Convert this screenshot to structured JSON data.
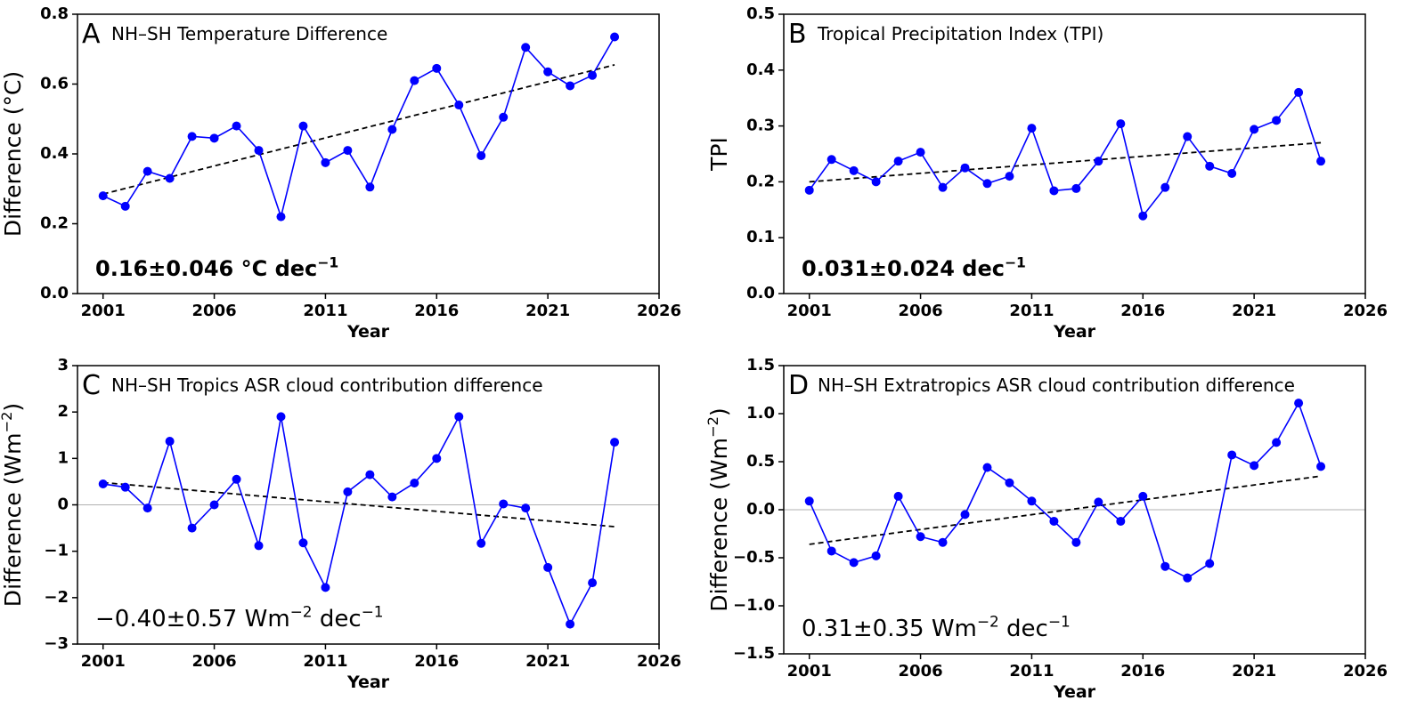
{
  "chart_data": [
    {
      "type": "line",
      "label": "A",
      "title": "NH–SH Temperature Difference",
      "xlabel": "Year",
      "ylabel": [
        {
          "text": "Difference (°C)"
        }
      ],
      "annotation": [
        {
          "text": "0.16±0.046 °C dec"
        },
        {
          "sup": "−1"
        }
      ],
      "x": [
        2001,
        2002,
        2003,
        2004,
        2005,
        2006,
        2007,
        2008,
        2009,
        2010,
        2011,
        2012,
        2013,
        2014,
        2015,
        2016,
        2017,
        2018,
        2019,
        2020,
        2021,
        2022,
        2023,
        2024
      ],
      "values": [
        0.28,
        0.25,
        0.35,
        0.33,
        0.45,
        0.445,
        0.48,
        0.41,
        0.22,
        0.48,
        0.375,
        0.41,
        0.305,
        0.47,
        0.61,
        0.645,
        0.54,
        0.395,
        0.505,
        0.705,
        0.635,
        0.595,
        0.625,
        0.735
      ],
      "color": "#0000ff",
      "trend": {
        "x": [
          2001,
          2024
        ],
        "values": [
          0.285,
          0.655
        ],
        "color": "#000000"
      },
      "xlim": [
        1999.85,
        2026
      ],
      "xticks": [
        2001,
        2006,
        2011,
        2016,
        2021,
        2026
      ],
      "ylim": [
        0,
        0.8
      ],
      "yticks": [
        {
          "value": 0,
          "label": "0.0"
        },
        0.2,
        0.4,
        0.6,
        0.8
      ]
    },
    {
      "type": "line",
      "label": "B",
      "title": "Tropical Precipitation Index (TPI)",
      "xlabel": "Year",
      "ylabel": [
        {
          "text": "TPI"
        }
      ],
      "annotation": [
        {
          "text": "0.031±0.024 dec"
        },
        {
          "sup": "−1"
        }
      ],
      "x": [
        2001,
        2002,
        2003,
        2004,
        2005,
        2006,
        2007,
        2008,
        2009,
        2010,
        2011,
        2012,
        2013,
        2014,
        2015,
        2016,
        2017,
        2018,
        2019,
        2020,
        2021,
        2022,
        2023,
        2024
      ],
      "values": [
        0.185,
        0.24,
        0.22,
        0.2,
        0.237,
        0.253,
        0.19,
        0.225,
        0.197,
        0.21,
        0.296,
        0.184,
        0.188,
        0.237,
        0.304,
        0.139,
        0.19,
        0.281,
        0.228,
        0.215,
        0.294,
        0.31,
        0.36,
        0.237
      ],
      "color": "#0000ff",
      "trend": {
        "x": [
          2001,
          2024
        ],
        "values": [
          0.2,
          0.27
        ],
        "color": "#000000"
      },
      "xlim": [
        1999.85,
        2026
      ],
      "xticks": [
        2001,
        2006,
        2011,
        2016,
        2021,
        2026
      ],
      "ylim": [
        0,
        0.5
      ],
      "yticks": [
        {
          "value": 0,
          "label": "0.0"
        },
        0.1,
        0.2,
        0.3,
        0.4,
        0.5
      ]
    },
    {
      "type": "line",
      "label": "C",
      "title": "NH–SH Tropics ASR cloud contribution difference",
      "xlabel": "Year",
      "ylabel": [
        {
          "text": "Difference (Wm"
        },
        {
          "sup": "−2"
        },
        {
          "text": ")"
        }
      ],
      "annotation": [
        {
          "text": "−0.40±0.57 Wm"
        },
        {
          "sup": "−2"
        },
        {
          "text": " dec"
        },
        {
          "sup": "−1"
        }
      ],
      "x": [
        2001,
        2002,
        2003,
        2004,
        2005,
        2006,
        2007,
        2008,
        2009,
        2010,
        2011,
        2012,
        2013,
        2014,
        2015,
        2016,
        2017,
        2018,
        2019,
        2020,
        2021,
        2022,
        2023,
        2024
      ],
      "values": [
        0.45,
        0.38,
        -0.07,
        1.37,
        -0.5,
        0.0,
        0.55,
        -0.88,
        1.9,
        -0.82,
        -1.78,
        0.28,
        0.65,
        0.17,
        0.47,
        1.0,
        1.9,
        -0.83,
        0.02,
        -0.07,
        -1.35,
        -2.57,
        -1.68,
        1.35
      ],
      "color": "#0000ff",
      "trend": {
        "x": [
          2001,
          2024
        ],
        "values": [
          0.48,
          -0.47
        ],
        "color": "#000000"
      },
      "hline": 0,
      "hline_color": "#b0b0b0",
      "xlim": [
        1999.85,
        2026
      ],
      "xticks": [
        2001,
        2006,
        2011,
        2016,
        2021,
        2026
      ],
      "ylim": [
        -3,
        3
      ],
      "yticks": [
        {
          "value": -3,
          "label": "−3"
        },
        {
          "value": -2,
          "label": "−2"
        },
        {
          "value": -1,
          "label": "−1"
        },
        0,
        1,
        2,
        3
      ]
    },
    {
      "type": "line",
      "label": "D",
      "title": "NH–SH Extratropics ASR cloud contribution difference",
      "xlabel": "Year",
      "ylabel": [
        {
          "text": "Difference (Wm"
        },
        {
          "sup": "−2"
        },
        {
          "text": ")"
        }
      ],
      "annotation": [
        {
          "text": "0.31±0.35 Wm"
        },
        {
          "sup": "−2"
        },
        {
          "text": " dec"
        },
        {
          "sup": "−1"
        }
      ],
      "x": [
        2001,
        2002,
        2003,
        2004,
        2005,
        2006,
        2007,
        2008,
        2009,
        2010,
        2011,
        2012,
        2013,
        2014,
        2015,
        2016,
        2017,
        2018,
        2019,
        2020,
        2021,
        2022,
        2023,
        2024
      ],
      "values": [
        0.09,
        -0.43,
        -0.55,
        -0.48,
        0.14,
        -0.28,
        -0.34,
        -0.05,
        0.44,
        0.28,
        0.09,
        -0.12,
        -0.34,
        0.08,
        -0.12,
        0.14,
        -0.59,
        -0.71,
        -0.56,
        0.57,
        0.46,
        0.7,
        1.11,
        0.45
      ],
      "color": "#0000ff",
      "trend": {
        "x": [
          2001,
          2024
        ],
        "values": [
          -0.36,
          0.35
        ],
        "color": "#000000"
      },
      "hline": 0,
      "hline_color": "#b0b0b0",
      "xlim": [
        1999.85,
        2026
      ],
      "xticks": [
        2001,
        2006,
        2011,
        2016,
        2021,
        2026
      ],
      "ylim": [
        -1.5,
        1.5
      ],
      "yticks": [
        {
          "value": -1.5,
          "label": "−1.5"
        },
        {
          "value": -1,
          "label": "−1.0"
        },
        {
          "value": -0.5,
          "label": "−0.5"
        },
        {
          "value": 0,
          "label": "0.0"
        },
        0.5,
        {
          "value": 1,
          "label": "1.0"
        },
        1.5
      ]
    }
  ]
}
